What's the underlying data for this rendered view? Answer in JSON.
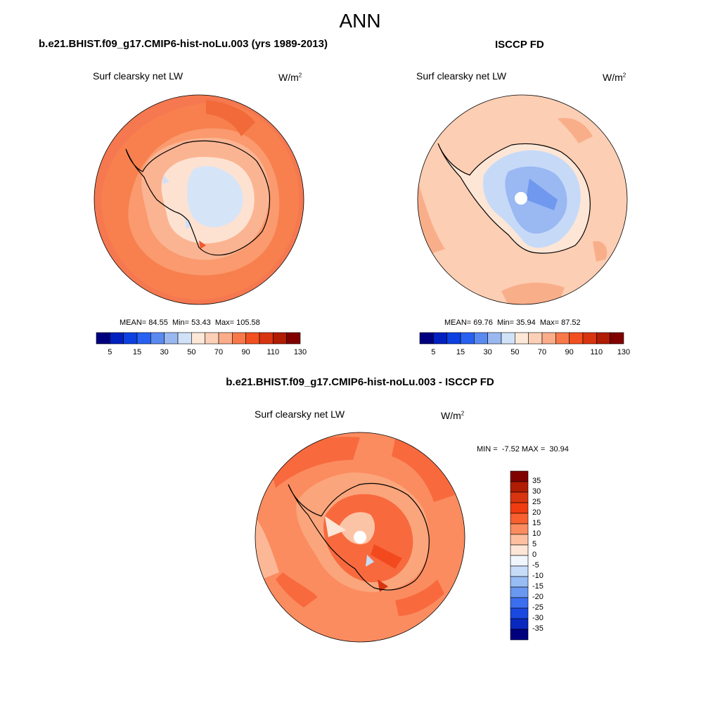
{
  "page": {
    "title": "ANN"
  },
  "panels": [
    {
      "id": "model",
      "case_title": "b.e21.BHIST.f09_g17.CMIP6-hist-noLu.003 (yrs 1989-2013)",
      "variable": "Surf clearsky net LW",
      "units_base": "W/m",
      "units_exp": "2",
      "stats": {
        "mean_label": "MEAN=",
        "mean": "84.55",
        "min_label": "Min=",
        "min": "53.43",
        "max_label": "Max=",
        "max": "105.58"
      },
      "colorbar_ticks": [
        "5",
        "15",
        "30",
        "50",
        "70",
        "90",
        "110",
        "130"
      ]
    },
    {
      "id": "obs",
      "case_title": "ISCCP FD",
      "variable": "Surf clearsky net LW",
      "units_base": "W/m",
      "units_exp": "2",
      "stats": {
        "mean_label": "MEAN=",
        "mean": "69.76",
        "min_label": "Min=",
        "min": "35.94",
        "max_label": "Max=",
        "max": "87.52"
      },
      "colorbar_ticks": [
        "5",
        "15",
        "30",
        "50",
        "70",
        "90",
        "110",
        "130"
      ]
    },
    {
      "id": "diff",
      "case_title": "b.e21.BHIST.f09_g17.CMIP6-hist-noLu.003 - ISCCP FD",
      "variable": "Surf clearsky net LW",
      "units_base": "W/m",
      "units_exp": "2",
      "stats": {
        "min_label": "MIN =",
        "min": "-7.52",
        "max_label": "MAX =",
        "max": "30.94"
      },
      "colorbar_ticks": [
        "35",
        "30",
        "25",
        "20",
        "15",
        "10",
        "5",
        "0",
        "-5",
        "-10",
        "-15",
        "-20",
        "-25",
        "-30",
        "-35"
      ]
    }
  ],
  "colors": {
    "abs_scale": [
      "#00007f",
      "#0020c0",
      "#0d40e0",
      "#2860f0",
      "#5a8af0",
      "#9ab8f0",
      "#d0e2f8",
      "#fde8d8",
      "#fcd0b6",
      "#fbac88",
      "#f8784a",
      "#f25020",
      "#d83410",
      "#b01c04",
      "#800000"
    ],
    "diff_scale": [
      "#800000",
      "#b01c04",
      "#d83410",
      "#f03c10",
      "#f86030",
      "#fb8c60",
      "#fcc0a0",
      "#fde6d6",
      "#f0f6fe",
      "#c6dcf8",
      "#98bcf4",
      "#6a98f0",
      "#3c6ef0",
      "#1a48e0",
      "#0828c0",
      "#00007f"
    ],
    "land_outline": "#000000"
  }
}
